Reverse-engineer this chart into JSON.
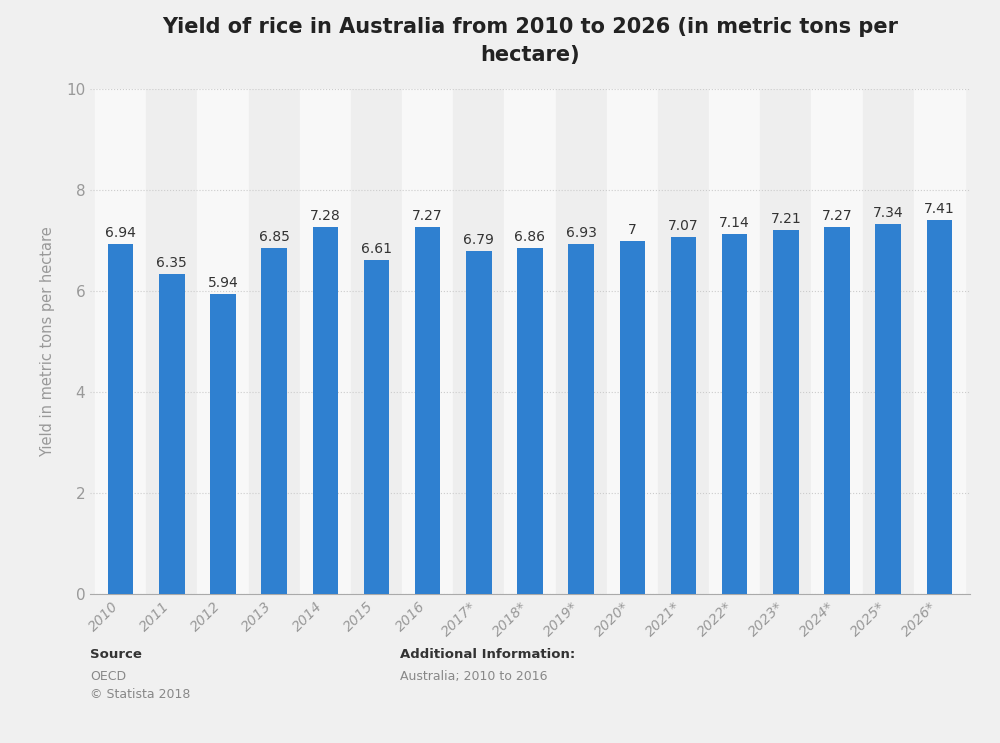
{
  "title": "Yield of rice in Australia from 2010 to 2026 (in metric tons per\nhectare)",
  "ylabel": "Yield in metric tons per hectare",
  "categories": [
    "2010",
    "2011",
    "2012",
    "2013",
    "2014",
    "2015",
    "2016",
    "2017*",
    "2018*",
    "2019*",
    "2020*",
    "2021*",
    "2022*",
    "2023*",
    "2024*",
    "2025*",
    "2026*"
  ],
  "values": [
    6.94,
    6.35,
    5.94,
    6.85,
    7.28,
    6.61,
    7.27,
    6.79,
    6.86,
    6.93,
    7.0,
    7.07,
    7.14,
    7.21,
    7.27,
    7.34,
    7.41
  ],
  "bar_color": "#2f80d0",
  "background_color": "#f0f0f0",
  "plot_background": "#f0f0f0",
  "stripe_color_light": "#f8f8f8",
  "stripe_color_dark": "#eeeeee",
  "ylim": [
    0,
    10
  ],
  "yticks": [
    0,
    2,
    4,
    6,
    8,
    10
  ],
  "title_fontsize": 15,
  "label_fontsize": 10.5,
  "tick_fontsize": 10,
  "value_fontsize": 10,
  "source_text": "Source",
  "additional_label": "Additional Information:",
  "additional_detail": "Australia; 2010 to 2016"
}
